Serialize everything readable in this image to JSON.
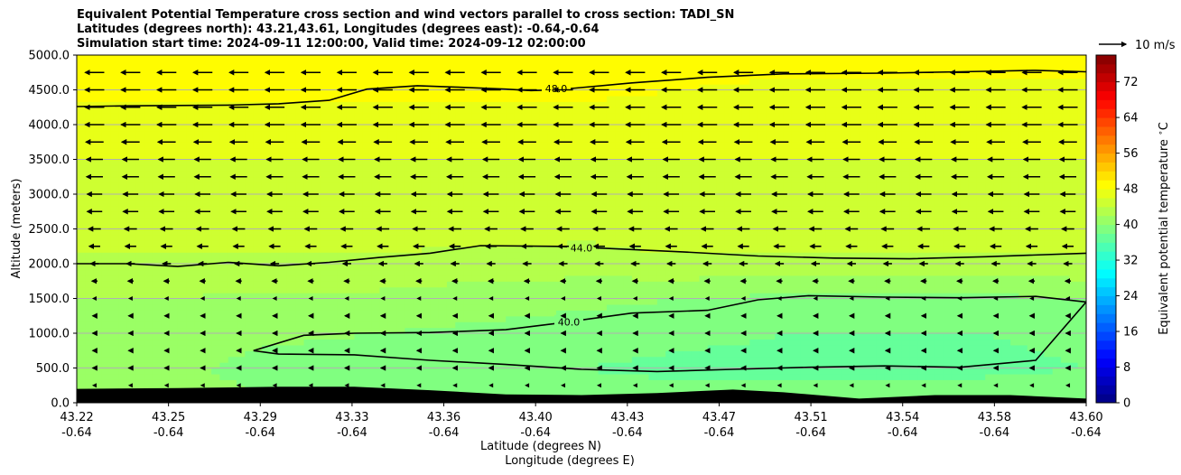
{
  "chart_data": {
    "type": "contour",
    "title_lines": [
      "Equivalent Potential Temperature cross section and wind vectors parallel to cross section: TADI_SN",
      "Latitudes (degrees north): 43.21,43.61, Longitudes (degrees east): -0.64,-0.64",
      "Simulation start time: 2024-09-11 12:00:00, Valid time: 2024-09-12 02:00:00"
    ],
    "ylabel": "Altitude (meters)",
    "xlabel": "Latitude (degrees N)",
    "xlabel2": "Longitude (degrees E)",
    "ylim": [
      0,
      5000
    ],
    "yticks": [
      "0.0",
      "500.0",
      "1000.0",
      "1500.0",
      "2000.0",
      "2500.0",
      "3000.0",
      "3500.0",
      "4000.0",
      "4500.0",
      "5000.0"
    ],
    "xlim": [
      43.21,
      43.61
    ],
    "xticks": [
      {
        "lat": "43.22",
        "lon": "-0.64"
      },
      {
        "lat": "43.25",
        "lon": "-0.64"
      },
      {
        "lat": "43.29",
        "lon": "-0.64"
      },
      {
        "lat": "43.33",
        "lon": "-0.64"
      },
      {
        "lat": "43.36",
        "lon": "-0.64"
      },
      {
        "lat": "43.40",
        "lon": "-0.64"
      },
      {
        "lat": "43.43",
        "lon": "-0.64"
      },
      {
        "lat": "43.47",
        "lon": "-0.64"
      },
      {
        "lat": "43.51",
        "lon": "-0.64"
      },
      {
        "lat": "43.54",
        "lon": "-0.64"
      },
      {
        "lat": "43.58",
        "lon": "-0.64"
      },
      {
        "lat": "43.60",
        "lon": "-0.64"
      }
    ],
    "colorbar": {
      "label": "Equivalent potential temperature $^\\circ$C",
      "ticks": [
        "0",
        "8",
        "16",
        "24",
        "32",
        "40",
        "48",
        "56",
        "64",
        "72"
      ],
      "range": [
        0,
        78
      ],
      "colormap": "jet"
    },
    "wind_key": {
      "label": "10 m/s",
      "speed": 10
    },
    "contour_labels": [
      "40.0",
      "44.0",
      "48.0"
    ],
    "contours": [
      {
        "level": 48.0,
        "label": "48.0",
        "points": [
          [
            43.21,
            4260
          ],
          [
            43.23,
            4270
          ],
          [
            43.27,
            4280
          ],
          [
            43.29,
            4300
          ],
          [
            43.31,
            4350
          ],
          [
            43.325,
            4510
          ],
          [
            43.345,
            4560
          ],
          [
            43.36,
            4540
          ],
          [
            43.38,
            4510
          ],
          [
            43.39,
            4490
          ],
          [
            43.4,
            4500
          ],
          [
            43.43,
            4600
          ],
          [
            43.46,
            4680
          ],
          [
            43.49,
            4730
          ],
          [
            43.53,
            4740
          ],
          [
            43.56,
            4760
          ],
          [
            43.59,
            4780
          ],
          [
            43.61,
            4760
          ]
        ],
        "label_at": [
          43.4,
          4520
        ]
      },
      {
        "level": 44.0,
        "label": "44.0",
        "points": [
          [
            43.21,
            2000
          ],
          [
            43.23,
            2000
          ],
          [
            43.25,
            1960
          ],
          [
            43.27,
            2020
          ],
          [
            43.29,
            1970
          ],
          [
            43.31,
            2020
          ],
          [
            43.33,
            2090
          ],
          [
            43.35,
            2150
          ],
          [
            43.37,
            2260
          ],
          [
            43.4,
            2250
          ],
          [
            43.42,
            2220
          ],
          [
            43.45,
            2170
          ],
          [
            43.48,
            2110
          ],
          [
            43.51,
            2080
          ],
          [
            43.54,
            2070
          ],
          [
            43.57,
            2100
          ],
          [
            43.61,
            2150
          ]
        ],
        "label_at": [
          43.41,
          2230
        ]
      },
      {
        "level": 40.0,
        "label": "40.0",
        "points": [
          [
            43.28,
            750
          ],
          [
            43.3,
            970
          ],
          [
            43.32,
            1000
          ],
          [
            43.35,
            1010
          ],
          [
            43.38,
            1050
          ],
          [
            43.4,
            1140
          ],
          [
            43.43,
            1290
          ],
          [
            43.46,
            1330
          ],
          [
            43.48,
            1480
          ],
          [
            43.5,
            1540
          ],
          [
            43.53,
            1520
          ],
          [
            43.56,
            1510
          ],
          [
            43.59,
            1530
          ],
          [
            43.61,
            1450
          ],
          [
            43.59,
            610
          ],
          [
            43.56,
            510
          ],
          [
            43.53,
            530
          ],
          [
            43.5,
            510
          ],
          [
            43.47,
            480
          ],
          [
            43.44,
            450
          ],
          [
            43.41,
            480
          ],
          [
            43.38,
            550
          ],
          [
            43.35,
            610
          ],
          [
            43.32,
            690
          ],
          [
            43.29,
            700
          ],
          [
            43.28,
            750
          ]
        ],
        "label_at": [
          43.405,
          1160
        ]
      }
    ],
    "theta_field": {
      "description": "equivalent potential temperature fill",
      "x": [
        43.21,
        43.25,
        43.29,
        43.33,
        43.37,
        43.41,
        43.45,
        43.49,
        43.53,
        43.57,
        43.61
      ],
      "z": [
        0,
        500,
        1000,
        1500,
        2000,
        2500,
        3000,
        3500,
        4000,
        4500,
        5000
      ],
      "values": [
        [
          41.0,
          41.0,
          40.0,
          40.0,
          39.5,
          39.0,
          39.0,
          39.0,
          39.0,
          39.5,
          40.0
        ],
        [
          41.0,
          40.5,
          39.0,
          38.5,
          38.5,
          38.0,
          37.5,
          37.5,
          37.5,
          37.5,
          38.0
        ],
        [
          41.5,
          41.0,
          40.5,
          40.0,
          39.5,
          39.0,
          38.5,
          38.0,
          38.0,
          38.0,
          38.5
        ],
        [
          42.0,
          42.0,
          41.5,
          41.5,
          41.0,
          40.5,
          40.0,
          39.5,
          39.5,
          39.5,
          40.0
        ],
        [
          43.5,
          43.5,
          43.5,
          43.5,
          43.0,
          43.0,
          43.5,
          43.5,
          43.5,
          43.5,
          43.5
        ],
        [
          45.0,
          45.0,
          45.0,
          45.0,
          45.0,
          45.0,
          45.0,
          45.0,
          45.0,
          45.0,
          45.0
        ],
        [
          45.5,
          45.5,
          45.5,
          45.5,
          45.5,
          45.5,
          45.5,
          45.5,
          45.0,
          45.5,
          45.5
        ],
        [
          46.0,
          46.0,
          46.0,
          46.0,
          46.0,
          46.0,
          46.0,
          46.0,
          46.0,
          46.0,
          46.0
        ],
        [
          47.0,
          47.0,
          47.0,
          47.0,
          47.0,
          47.0,
          46.5,
          46.5,
          46.5,
          46.5,
          46.5
        ],
        [
          48.5,
          48.5,
          48.5,
          48.5,
          48.5,
          48.5,
          48.0,
          47.5,
          47.5,
          47.5,
          47.5
        ],
        [
          49.0,
          49.0,
          49.0,
          49.0,
          49.0,
          49.0,
          49.0,
          49.0,
          49.0,
          49.0,
          49.0
        ]
      ]
    },
    "wind_levels": [
      {
        "z": 4750,
        "u": -7.0
      },
      {
        "z": 4500,
        "u": -7.0
      },
      {
        "z": 4250,
        "u": -7.0
      },
      {
        "z": 4000,
        "u": -7.0
      },
      {
        "z": 3750,
        "u": -6.5
      },
      {
        "z": 3500,
        "u": -6.0
      },
      {
        "z": 3250,
        "u": -6.0
      },
      {
        "z": 3000,
        "u": -5.5
      },
      {
        "z": 2750,
        "u": -5.5
      },
      {
        "z": 2500,
        "u": -4.5
      },
      {
        "z": 2250,
        "u": -4.0
      },
      {
        "z": 2000,
        "u": -3.0
      },
      {
        "z": 1750,
        "u": -2.0
      },
      {
        "z": 1500,
        "u": -1.2
      },
      {
        "z": 1250,
        "u": -1.5
      },
      {
        "z": 1000,
        "u": -1.5
      },
      {
        "z": 750,
        "u": -1.5
      },
      {
        "z": 500,
        "u": -1.5
      },
      {
        "z": 250,
        "u": -0.8
      }
    ],
    "terrain": {
      "description": "terrain height along section (black)",
      "points": [
        [
          43.21,
          200
        ],
        [
          43.25,
          210
        ],
        [
          43.29,
          230
        ],
        [
          43.32,
          230
        ],
        [
          43.35,
          180
        ],
        [
          43.38,
          120
        ],
        [
          43.41,
          110
        ],
        [
          43.44,
          140
        ],
        [
          43.47,
          190
        ],
        [
          43.49,
          150
        ],
        [
          43.52,
          60
        ],
        [
          43.55,
          110
        ],
        [
          43.58,
          110
        ],
        [
          43.61,
          60
        ]
      ]
    }
  }
}
